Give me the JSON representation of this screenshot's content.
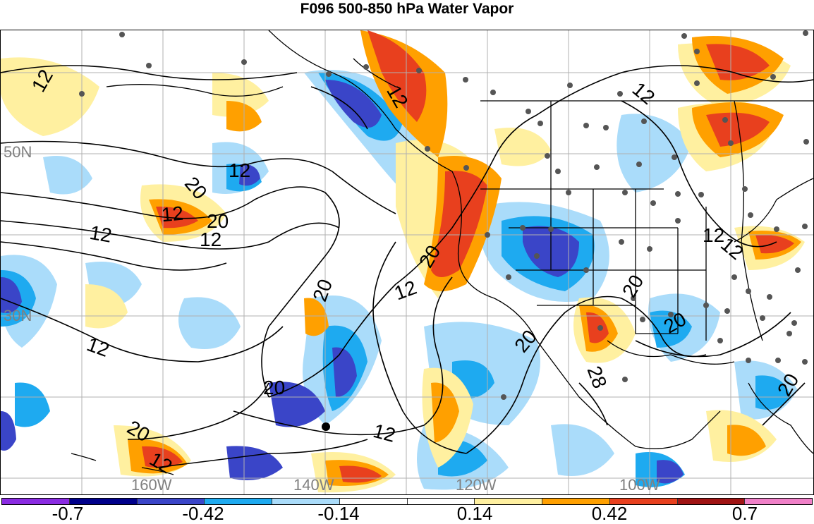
{
  "title": "F096 500-850 hPa Water Vapor",
  "lat_labels": [
    "50N",
    "30N"
  ],
  "lon_labels": [
    "160W",
    "140W",
    "120W",
    "100W"
  ],
  "contour_labels": [
    "12",
    "12",
    "12",
    "12",
    "20",
    "20",
    "12",
    "12",
    "20",
    "20",
    "12",
    "12",
    "20",
    "20",
    "12",
    "12",
    "20",
    "20",
    "20",
    "28",
    "20",
    "12",
    "12",
    "12"
  ],
  "colorbar": {
    "colors": [
      "#8a2be2",
      "#00008b",
      "#3a45c8",
      "#1eaaf0",
      "#aadcfa",
      "#ffffff",
      "#ffffff",
      "#fff0a0",
      "#ffa000",
      "#e8401e",
      "#a01414",
      "#f080c8"
    ],
    "tick_labels": [
      "-0.7",
      "-0.42",
      "-0.14",
      "0.14",
      "0.42",
      "0.7"
    ]
  },
  "station_marker": "black-dot"
}
